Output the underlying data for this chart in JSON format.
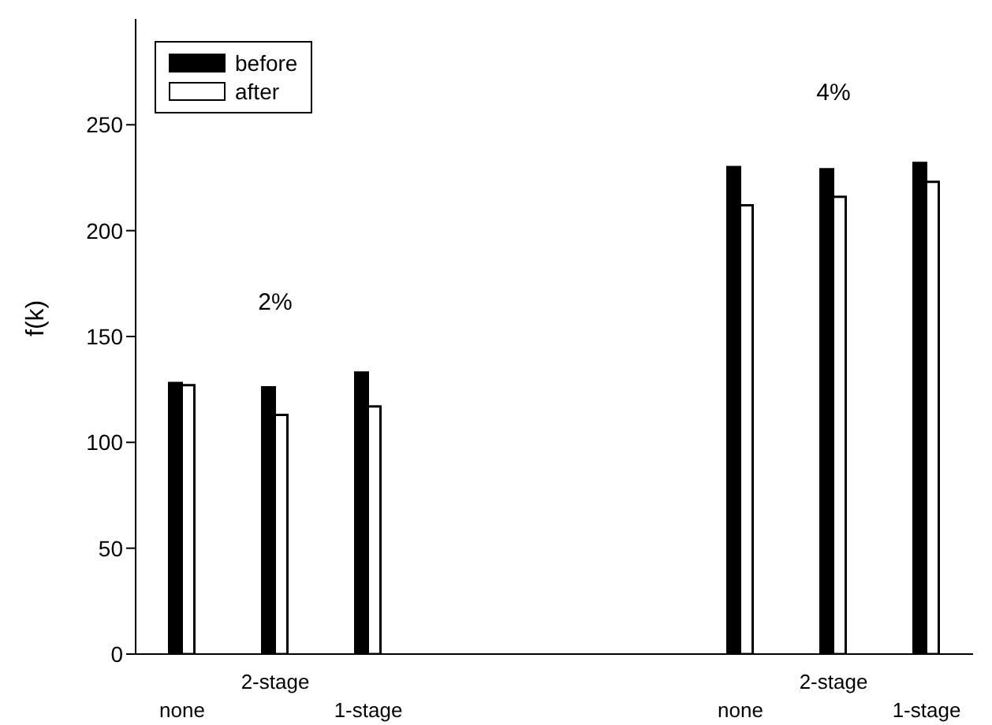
{
  "chart_data": {
    "type": "bar",
    "ylabel": "f(k)",
    "categories": [
      "none",
      "2-stage",
      "1-stage",
      null,
      null,
      null,
      "none",
      "2-stage",
      "1-stage"
    ],
    "series": [
      {
        "name": "before",
        "color": "#000000",
        "values": [
          128,
          126,
          133,
          null,
          null,
          null,
          230,
          229,
          232
        ]
      },
      {
        "name": "after",
        "color": "#ffffff",
        "values": [
          127,
          113,
          117,
          null,
          null,
          null,
          212,
          216,
          223
        ]
      }
    ],
    "ylim": [
      0,
      300
    ],
    "yticks": [
      0,
      50,
      100,
      150,
      200,
      250
    ],
    "legend": "top left",
    "annotations": [
      "2%",
      "4%"
    ]
  }
}
